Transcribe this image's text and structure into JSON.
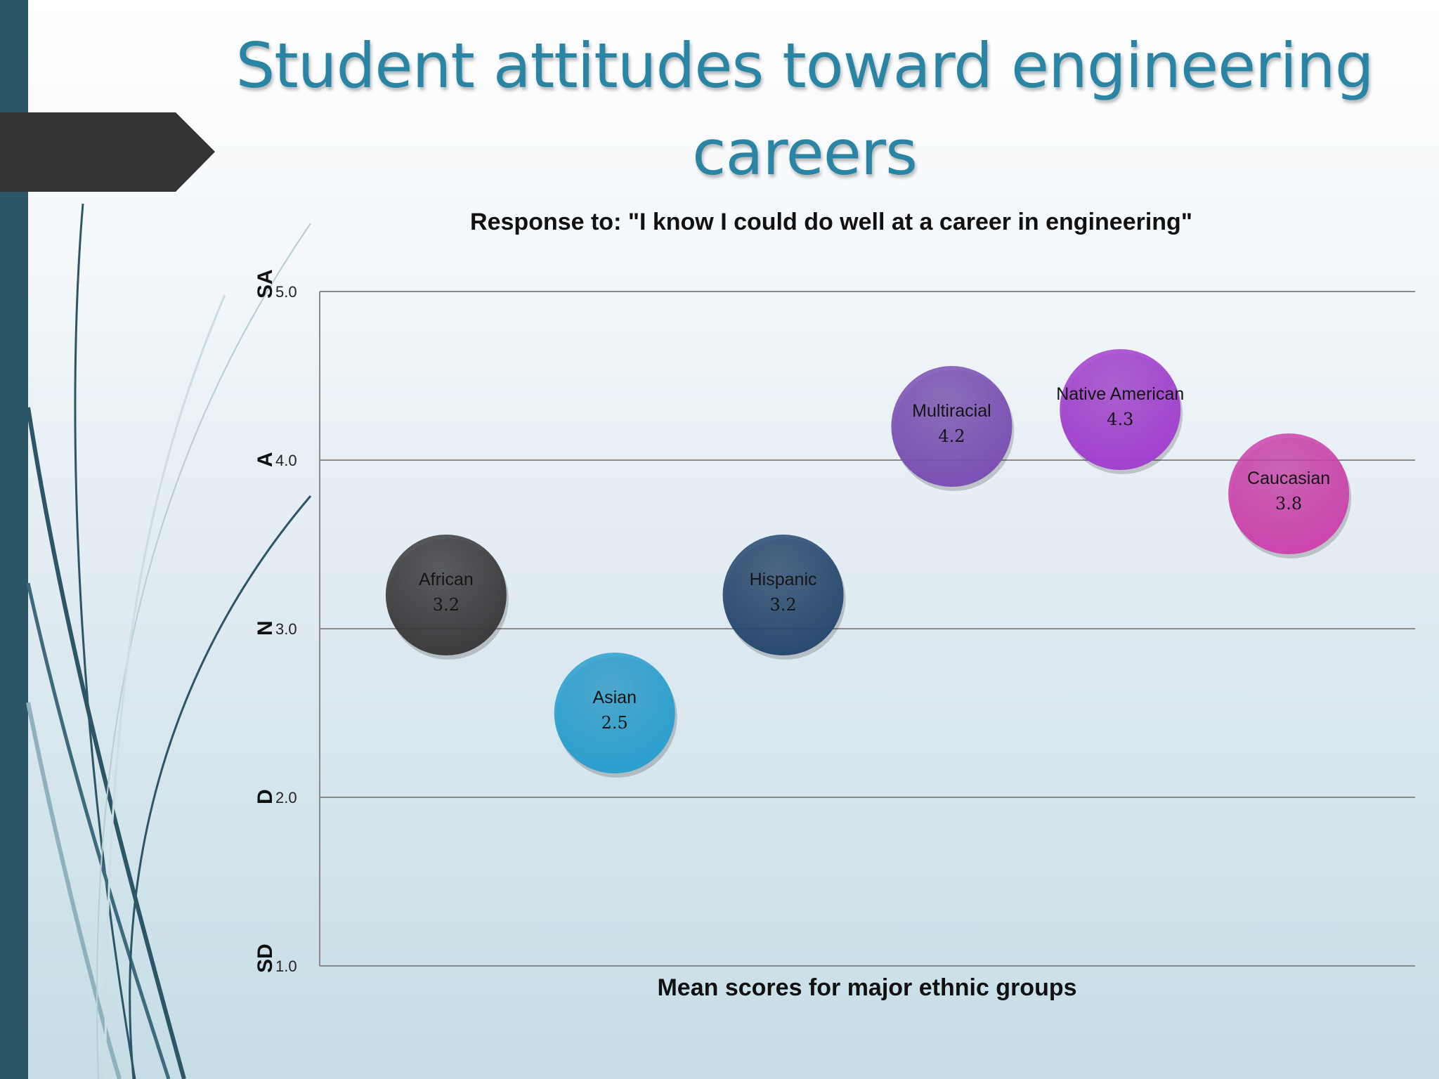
{
  "slide": {
    "title": "Student attitudes toward engineering careers"
  },
  "chart_data": {
    "type": "scatter",
    "title": "Response to: \"I know I could do well at a career in engineering\"",
    "xlabel": "Mean scores for major ethnic groups",
    "ylabel": "",
    "ylim": [
      1.0,
      5.0
    ],
    "y_ticks": [
      "1.0",
      "2.0",
      "3.0",
      "4.0",
      "5.0"
    ],
    "y_scale_labels": [
      "SD",
      "D",
      "N",
      "A",
      "SA"
    ],
    "grid": true,
    "points": [
      {
        "name": "African",
        "value": 3.2,
        "label": "3.2",
        "color": "#3a3a3c"
      },
      {
        "name": "Asian",
        "value": 2.5,
        "label": "2.5",
        "color": "#2a9fcf"
      },
      {
        "name": "Hispanic",
        "value": 3.2,
        "label": "3.2",
        "color": "#27486f"
      },
      {
        "name": "Multiracial",
        "value": 4.2,
        "label": "4.2",
        "color": "#7a4fb3"
      },
      {
        "name": "Native American",
        "value": 4.3,
        "label": "4.3",
        "color": "#a23fcf"
      },
      {
        "name": "Caucasian",
        "value": 3.8,
        "label": "3.8",
        "color": "#cc43ad"
      }
    ]
  }
}
